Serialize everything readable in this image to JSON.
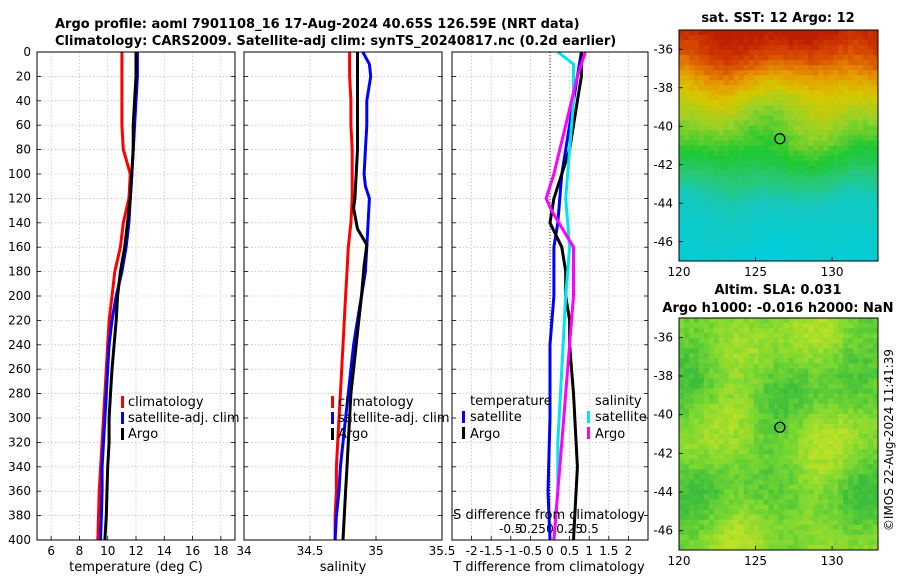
{
  "title": {
    "line1": "Argo profile: aoml 7901108_16 17-Aug-2024 40.65S 126.59E (NRT data)",
    "line2": "Climatology: CARS2009. Satellite-adj clim: synTS_20240817.nc (0.2d earlier)"
  },
  "colors": {
    "climatology": "#ff0000",
    "satellite": "#0000ff",
    "argo": "#000000",
    "satellite_salinity": "#00e5ee",
    "argo_salinity": "#ff00ff",
    "grid": "#b0b0b0"
  },
  "depth_axis": {
    "min": 0,
    "max": 400,
    "ticks": [
      0,
      20,
      40,
      60,
      80,
      100,
      120,
      140,
      160,
      180,
      200,
      220,
      240,
      260,
      280,
      300,
      320,
      340,
      360,
      380,
      400
    ]
  },
  "chart_data": [
    {
      "id": "temperature",
      "type": "line",
      "xlabel": "temperature (deg C)",
      "xlim": [
        5,
        19
      ],
      "xticks": [
        6,
        8,
        10,
        12,
        14,
        16,
        18
      ],
      "legend": [
        "climatology",
        "satellite-adj. clim",
        "Argo"
      ],
      "series": [
        {
          "name": "climatology",
          "color_key": "climatology",
          "points": [
            [
              11.0,
              0
            ],
            [
              11.0,
              20
            ],
            [
              11.0,
              40
            ],
            [
              11.0,
              60
            ],
            [
              11.1,
              80
            ],
            [
              11.6,
              100
            ],
            [
              11.5,
              120
            ],
            [
              11.1,
              140
            ],
            [
              10.9,
              160
            ],
            [
              10.5,
              180
            ],
            [
              10.3,
              200
            ],
            [
              10.1,
              220
            ],
            [
              10.0,
              240
            ],
            [
              9.9,
              260
            ],
            [
              9.8,
              280
            ],
            [
              9.7,
              300
            ],
            [
              9.6,
              320
            ],
            [
              9.5,
              340
            ],
            [
              9.4,
              360
            ],
            [
              9.35,
              380
            ],
            [
              9.3,
              400
            ]
          ]
        },
        {
          "name": "satellite-adj. clim",
          "color_key": "satellite",
          "points": [
            [
              12.1,
              0
            ],
            [
              12.1,
              20
            ],
            [
              12.0,
              40
            ],
            [
              11.9,
              60
            ],
            [
              11.8,
              80
            ],
            [
              11.7,
              100
            ],
            [
              11.6,
              120
            ],
            [
              11.5,
              140
            ],
            [
              11.3,
              160
            ],
            [
              11.0,
              180
            ],
            [
              10.6,
              200
            ],
            [
              10.3,
              220
            ],
            [
              10.1,
              240
            ],
            [
              10.0,
              260
            ],
            [
              9.9,
              280
            ],
            [
              9.8,
              300
            ],
            [
              9.7,
              320
            ],
            [
              9.6,
              340
            ],
            [
              9.6,
              360
            ],
            [
              9.55,
              380
            ],
            [
              9.5,
              400
            ]
          ]
        },
        {
          "name": "Argo",
          "color_key": "argo",
          "points": [
            [
              12.0,
              0
            ],
            [
              12.0,
              20
            ],
            [
              11.9,
              40
            ],
            [
              11.8,
              60
            ],
            [
              11.8,
              80
            ],
            [
              11.7,
              100
            ],
            [
              11.6,
              120
            ],
            [
              11.4,
              140
            ],
            [
              11.2,
              160
            ],
            [
              10.9,
              180
            ],
            [
              10.7,
              200
            ],
            [
              10.6,
              220
            ],
            [
              10.45,
              240
            ],
            [
              10.3,
              260
            ],
            [
              10.2,
              280
            ],
            [
              10.1,
              300
            ],
            [
              10.1,
              320
            ],
            [
              10.0,
              340
            ],
            [
              9.95,
              360
            ],
            [
              9.9,
              380
            ],
            [
              9.8,
              400
            ]
          ]
        }
      ]
    },
    {
      "id": "salinity",
      "type": "line",
      "xlabel": "salinity",
      "xlim": [
        34,
        35.5
      ],
      "xticks": [
        34,
        34.5,
        35,
        35.5
      ],
      "legend": [
        "climatology",
        "satellite-adj. clim",
        "Argo"
      ],
      "series": [
        {
          "name": "climatology",
          "color_key": "climatology",
          "points": [
            [
              34.8,
              0
            ],
            [
              34.8,
              20
            ],
            [
              34.81,
              40
            ],
            [
              34.81,
              60
            ],
            [
              34.82,
              80
            ],
            [
              34.82,
              100
            ],
            [
              34.82,
              120
            ],
            [
              34.81,
              140
            ],
            [
              34.79,
              160
            ],
            [
              34.78,
              180
            ],
            [
              34.77,
              200
            ],
            [
              34.76,
              220
            ],
            [
              34.75,
              240
            ],
            [
              34.74,
              260
            ],
            [
              34.73,
              280
            ],
            [
              34.72,
              300
            ],
            [
              34.71,
              320
            ],
            [
              34.7,
              340
            ],
            [
              34.7,
              360
            ],
            [
              34.69,
              380
            ],
            [
              34.69,
              400
            ]
          ]
        },
        {
          "name": "satellite-adj. clim",
          "color_key": "satellite",
          "points": [
            [
              34.9,
              0
            ],
            [
              34.95,
              10
            ],
            [
              34.96,
              20
            ],
            [
              34.93,
              40
            ],
            [
              34.93,
              60
            ],
            [
              34.92,
              80
            ],
            [
              34.91,
              100
            ],
            [
              34.92,
              110
            ],
            [
              34.95,
              120
            ],
            [
              34.94,
              140
            ],
            [
              34.93,
              160
            ],
            [
              34.92,
              180
            ],
            [
              34.89,
              200
            ],
            [
              34.86,
              220
            ],
            [
              34.83,
              240
            ],
            [
              34.81,
              260
            ],
            [
              34.79,
              280
            ],
            [
              34.77,
              300
            ],
            [
              34.75,
              320
            ],
            [
              34.73,
              340
            ],
            [
              34.72,
              360
            ],
            [
              34.7,
              380
            ],
            [
              34.69,
              400
            ]
          ]
        },
        {
          "name": "Argo",
          "color_key": "argo",
          "points": [
            [
              34.86,
              0
            ],
            [
              34.86,
              20
            ],
            [
              34.86,
              40
            ],
            [
              34.86,
              60
            ],
            [
              34.86,
              80
            ],
            [
              34.85,
              100
            ],
            [
              34.84,
              120
            ],
            [
              34.83,
              128
            ],
            [
              34.86,
              145
            ],
            [
              34.93,
              158
            ],
            [
              34.91,
              175
            ],
            [
              34.89,
              200
            ],
            [
              34.87,
              220
            ],
            [
              34.85,
              240
            ],
            [
              34.83,
              260
            ],
            [
              34.81,
              280
            ],
            [
              34.8,
              300
            ],
            [
              34.79,
              320
            ],
            [
              34.78,
              340
            ],
            [
              34.77,
              360
            ],
            [
              34.76,
              380
            ],
            [
              34.75,
              400
            ]
          ]
        }
      ]
    },
    {
      "id": "difference",
      "type": "line",
      "xlabel": "T difference from climatology",
      "xlabel_top": "S difference from climatology",
      "xlim": [
        -2.5,
        2.5
      ],
      "xticks": [
        -2,
        -1.5,
        -1,
        -0.5,
        0,
        0.5,
        1,
        1.5,
        2
      ],
      "xtick_labels": [
        "-2",
        "-1.5",
        "-1",
        "-0.5",
        "0",
        "0.5",
        "1",
        "1.5",
        "2"
      ],
      "s_ticks": [
        -0.5,
        -0.25,
        0,
        0.25,
        0.5
      ],
      "s_tick_labels": [
        "-0.5",
        "-0.25",
        "0",
        "0.25",
        "0.5"
      ],
      "legend_temperature": {
        "title": "temperature",
        "items": [
          "satellite",
          "Argo"
        ]
      },
      "legend_salinity": {
        "title": "salinity",
        "items": [
          "satellite",
          "Argo"
        ]
      },
      "series": [
        {
          "name": "temperature satellite",
          "color_key": "satellite",
          "points": [
            [
              0.8,
              0
            ],
            [
              0.7,
              20
            ],
            [
              0.5,
              60
            ],
            [
              0.3,
              100
            ],
            [
              0.2,
              140
            ],
            [
              0.1,
              160
            ],
            [
              0.1,
              200
            ],
            [
              0.0,
              240
            ],
            [
              0.0,
              300
            ],
            [
              -0.05,
              360
            ],
            [
              0.0,
              400
            ]
          ]
        },
        {
          "name": "temperature Argo",
          "color_key": "argo",
          "points": [
            [
              0.8,
              0
            ],
            [
              0.8,
              20
            ],
            [
              0.7,
              40
            ],
            [
              0.5,
              80
            ],
            [
              0.3,
              100
            ],
            [
              0.1,
              120
            ],
            [
              0.0,
              140
            ],
            [
              0.3,
              160
            ],
            [
              0.4,
              180
            ],
            [
              0.4,
              200
            ],
            [
              0.5,
              220
            ],
            [
              0.5,
              240
            ],
            [
              0.6,
              280
            ],
            [
              0.7,
              340
            ],
            [
              0.6,
              400
            ]
          ]
        },
        {
          "name": "salinity satellite",
          "color_key": "satellite_salinity",
          "points": [
            [
              0.1,
              0
            ],
            [
              0.3,
              10
            ],
            [
              0.3,
              40
            ],
            [
              0.25,
              80
            ],
            [
              0.2,
              120
            ],
            [
              0.25,
              160
            ],
            [
              0.2,
              200
            ],
            [
              0.15,
              260
            ],
            [
              0.1,
              320
            ],
            [
              0.1,
              360
            ],
            [
              0.05,
              400
            ]
          ]
        },
        {
          "name": "salinity Argo",
          "color_key": "argo_salinity",
          "points": [
            [
              0.45,
              0
            ],
            [
              0.35,
              20
            ],
            [
              0.2,
              60
            ],
            [
              0.05,
              100
            ],
            [
              -0.05,
              120
            ],
            [
              0.02,
              130
            ],
            [
              0.3,
              160
            ],
            [
              0.3,
              200
            ],
            [
              0.25,
              240
            ],
            [
              0.2,
              280
            ],
            [
              0.15,
              320
            ],
            [
              0.1,
              360
            ],
            [
              0.05,
              400
            ]
          ]
        }
      ]
    }
  ],
  "maps": {
    "sst": {
      "title": "sat. SST: 12 Argo: 12",
      "lat_ticks": [
        -36,
        -38,
        -40,
        -42,
        -44,
        -46
      ],
      "lon_ticks": [
        120,
        125,
        130
      ],
      "lat_range": [
        -35,
        -47
      ],
      "lon_range": [
        120,
        133
      ],
      "marker": {
        "lat": -40.65,
        "lon": 126.59
      }
    },
    "sla": {
      "title1": "Altim. SLA: 0.031",
      "title2": "Argo h1000: -0.016 h2000: NaN",
      "lat_ticks": [
        -36,
        -38,
        -40,
        -42,
        -44,
        -46
      ],
      "lon_ticks": [
        120,
        125,
        130
      ],
      "lat_range": [
        -35,
        -47
      ],
      "lon_range": [
        120,
        133
      ],
      "marker": {
        "lat": -40.65,
        "lon": 126.59
      }
    }
  },
  "stamp": "©IMOS 22-Aug-2024 11:41:39"
}
